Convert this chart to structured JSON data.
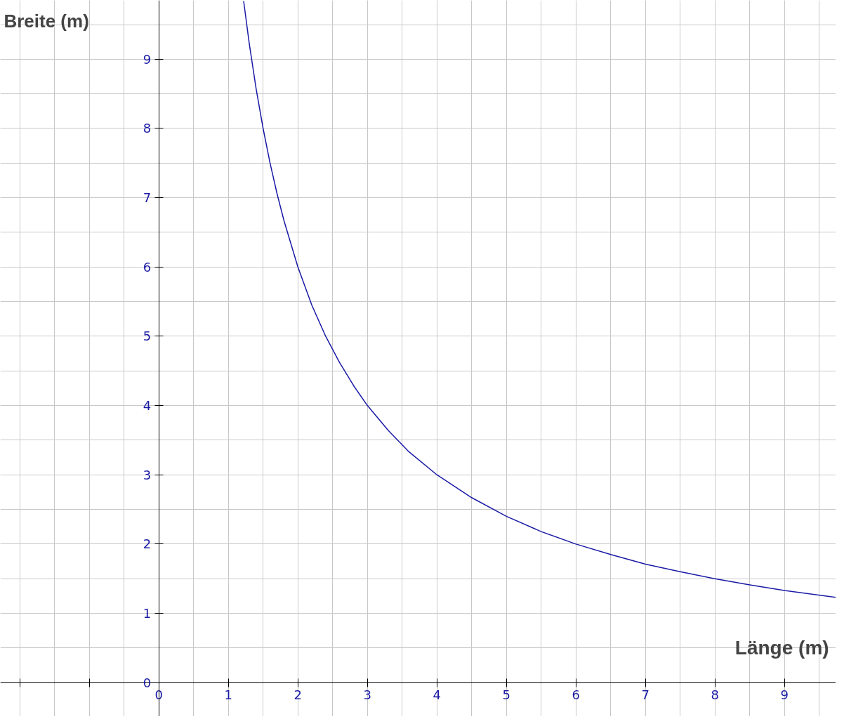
{
  "chart_data": {
    "type": "line",
    "xlabel": "Länge (m)",
    "ylabel": "Breite (m)",
    "x": [
      1.22,
      1.3,
      1.4,
      1.5,
      1.6,
      1.7,
      1.8,
      2,
      2.2,
      2.4,
      2.6,
      2.8,
      3,
      3.3,
      3.6,
      4,
      4.5,
      5,
      5.5,
      6,
      6.5,
      7,
      7.5,
      8,
      8.5,
      9,
      9.74
    ],
    "series": [
      {
        "color": "#1a1aa6",
        "values": [
          9.84,
          9.23,
          8.57,
          8,
          7.5,
          7.06,
          6.67,
          6,
          5.45,
          5,
          4.62,
          4.29,
          4,
          3.64,
          3.33,
          3,
          2.67,
          2.4,
          2.18,
          2,
          1.85,
          1.71,
          1.6,
          1.5,
          1.41,
          1.33,
          1.23
        ]
      }
    ],
    "xlim": [
      -2.28,
      9.74
    ],
    "ylim": [
      -0.49,
      9.85
    ],
    "xticks": [
      {
        "value": -2,
        "label": null
      },
      {
        "value": -1,
        "label": null
      },
      0,
      1,
      2,
      3,
      4,
      5,
      6,
      7,
      8,
      9
    ],
    "yticks": [
      0,
      1,
      2,
      3,
      4,
      5,
      6,
      7,
      8,
      9
    ],
    "grid": true,
    "marker": "none",
    "line_style": "solid"
  }
}
